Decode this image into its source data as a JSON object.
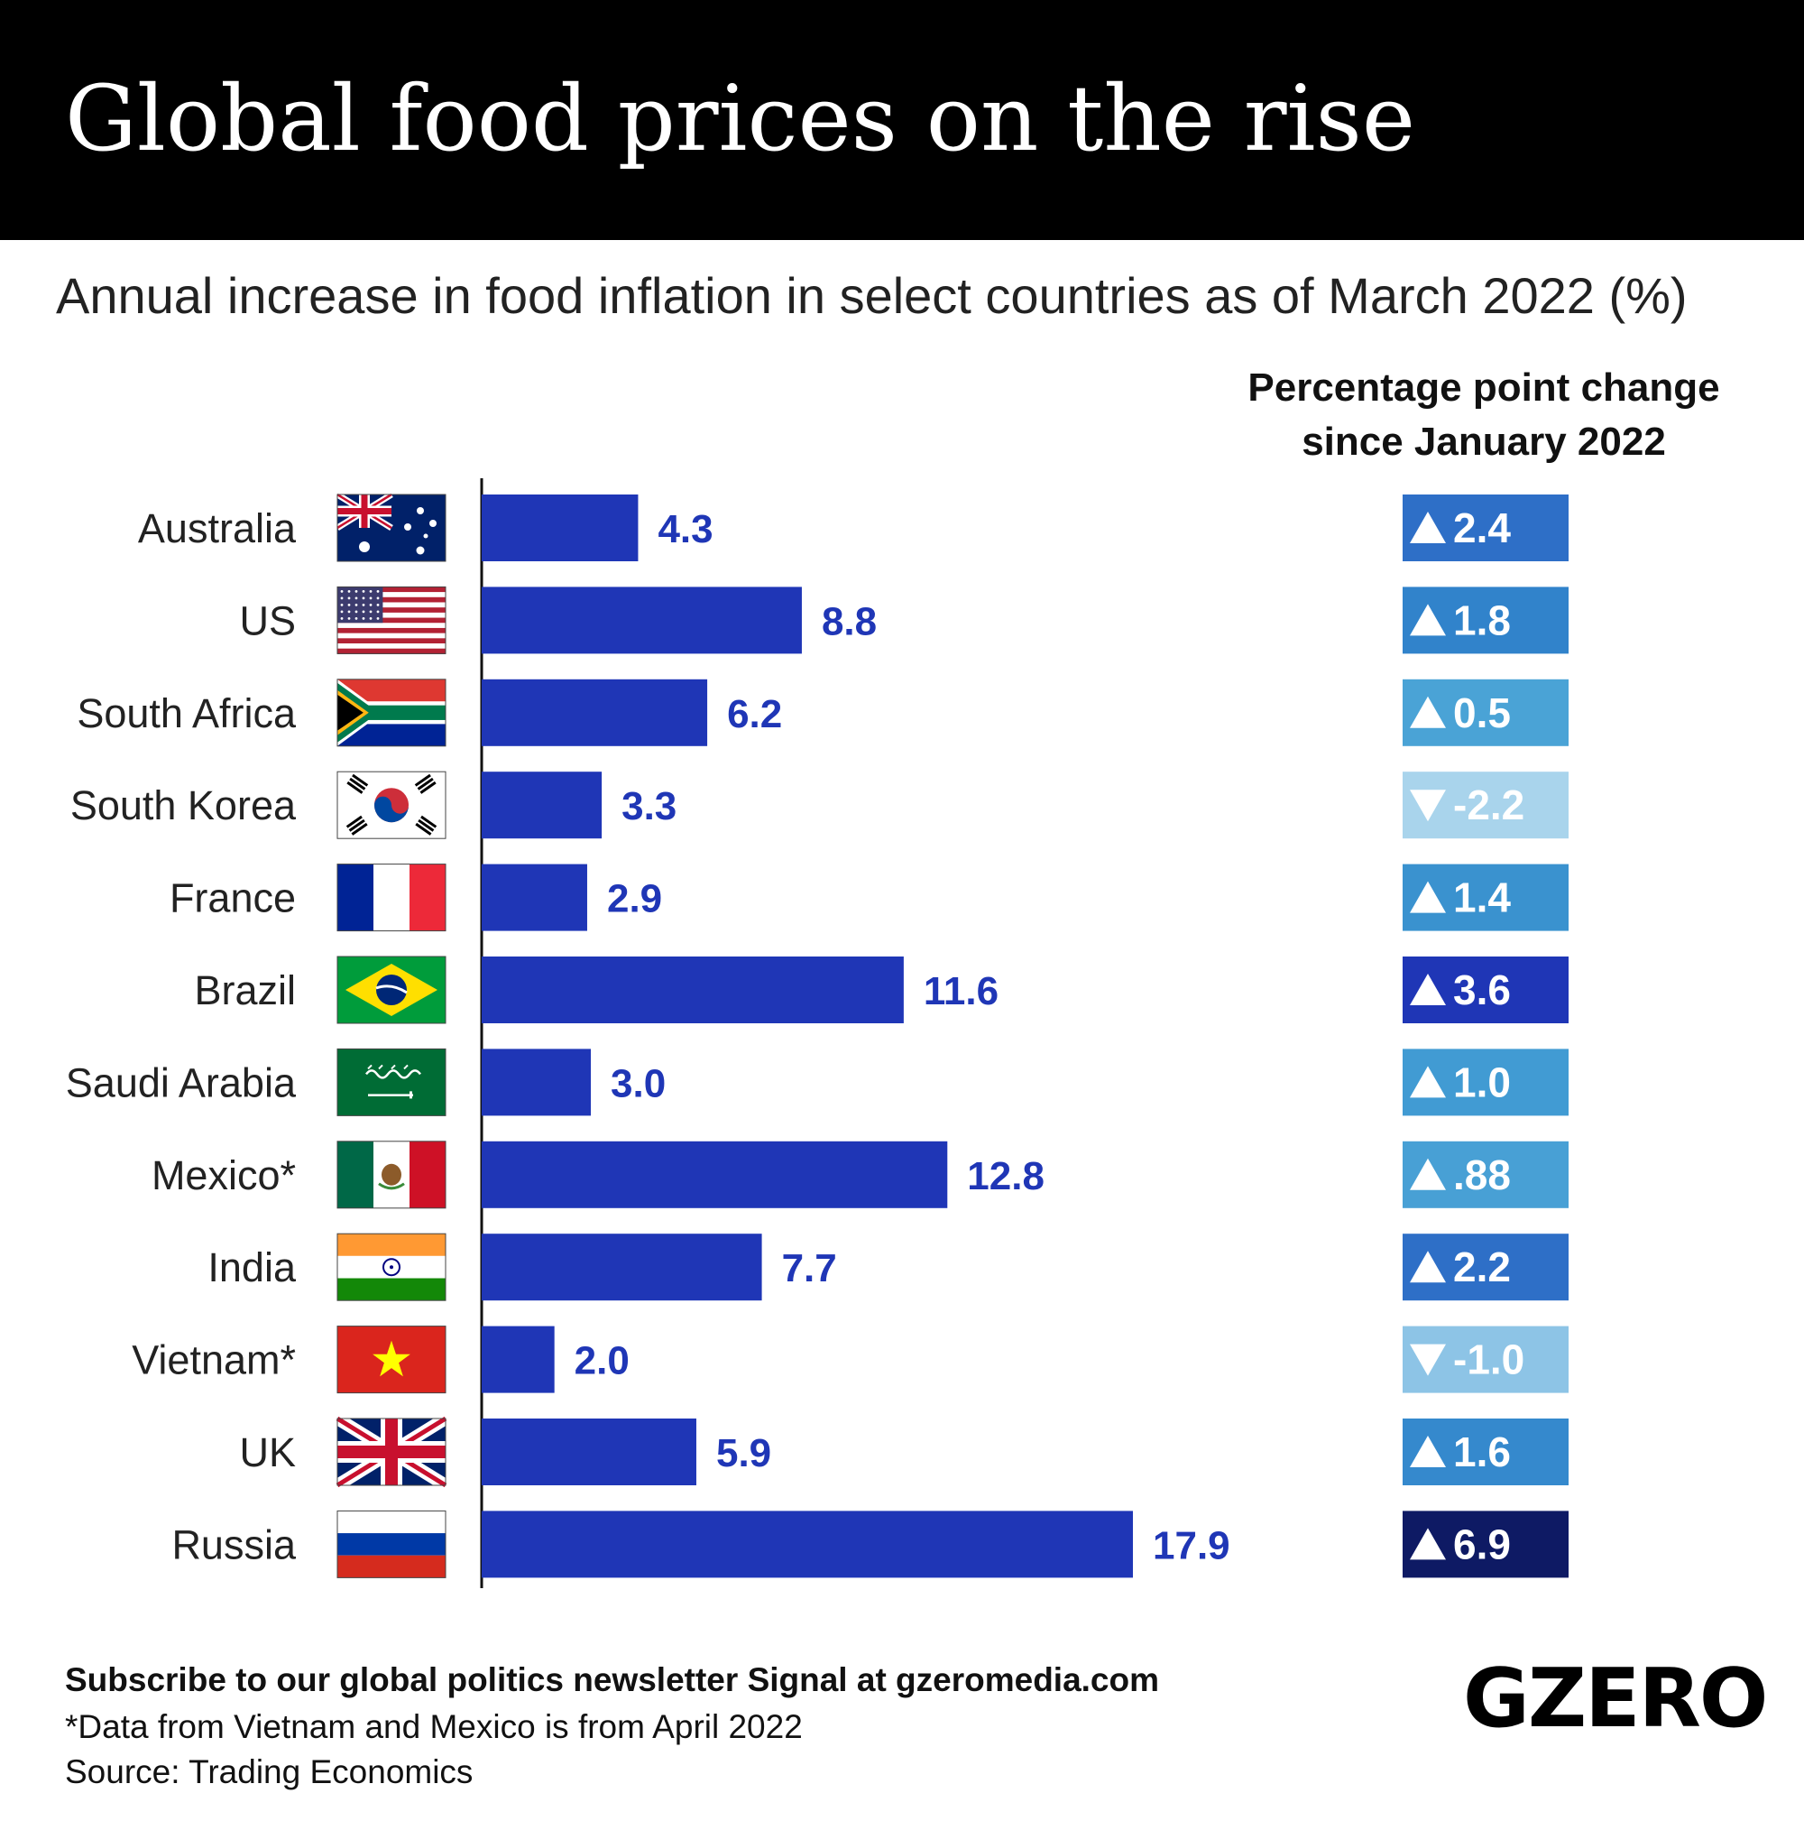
{
  "title": "Global food prices on the rise",
  "subtitle": "Annual increase in food inflation in select countries as of March 2022 (%)",
  "ppc_heading_line1": "Percentage point change",
  "ppc_heading_line2": "since January 2022",
  "footer": {
    "subscribe": "Subscribe to our global politics newsletter Signal at gzeromedia.com",
    "note": "*Data from Vietnam and Mexico is from April 2022",
    "source": "Source: Trading Economics"
  },
  "logo": "GZERO",
  "colors": {
    "bar": "#1f36b6",
    "value_text": "#1f36b6",
    "badge_text": "#ffffff"
  },
  "chart_data": {
    "type": "bar",
    "orientation": "horizontal",
    "title": "Global food prices on the rise",
    "subtitle": "Annual increase in food inflation in select countries as of March 2022 (%)",
    "xlabel": "",
    "ylabel": "",
    "xlim": [
      0,
      18
    ],
    "grid": false,
    "categories": [
      "Australia",
      "US",
      "South Africa",
      "South Korea",
      "France",
      "Brazil",
      "Saudi Arabia",
      "Mexico*",
      "India",
      "Vietnam*",
      "UK",
      "Russia"
    ],
    "values": [
      4.3,
      8.8,
      6.2,
      3.3,
      2.9,
      11.6,
      3.0,
      12.8,
      7.7,
      2.0,
      5.9,
      17.9
    ],
    "value_labels": [
      "4.3",
      "8.8",
      "6.2",
      "3.3",
      "2.9",
      "11.6",
      "3.0",
      "12.8",
      "7.7",
      "2.0",
      "5.9",
      "17.9"
    ],
    "flags": [
      "australia-flag",
      "us-flag",
      "south-africa-flag",
      "south-korea-flag",
      "france-flag",
      "brazil-flag",
      "saudi-arabia-flag",
      "mexico-flag",
      "india-flag",
      "vietnam-flag",
      "uk-flag",
      "russia-flag"
    ],
    "change_series": {
      "name": "Percentage point change since January 2022",
      "values": [
        2.4,
        1.8,
        0.5,
        -2.2,
        1.4,
        3.6,
        1.0,
        0.88,
        2.2,
        -1.0,
        1.6,
        6.9
      ],
      "labels": [
        "2.4",
        "1.8",
        "0.5",
        "-2.2",
        "1.4",
        "3.6",
        "1.0",
        ".88",
        "2.2",
        "-1.0",
        "1.6",
        "6.9"
      ],
      "directions": [
        "up",
        "up",
        "up",
        "down",
        "up",
        "up",
        "up",
        "up",
        "up",
        "down",
        "up",
        "up"
      ],
      "colors": [
        "#2e6fc7",
        "#3183cb",
        "#4aa3d6",
        "#a9d4ec",
        "#3a92cf",
        "#1f36b6",
        "#419bd3",
        "#48a0d5",
        "#2e6fc7",
        "#8dc4e6",
        "#3589cd",
        "#0e1a64"
      ]
    }
  }
}
